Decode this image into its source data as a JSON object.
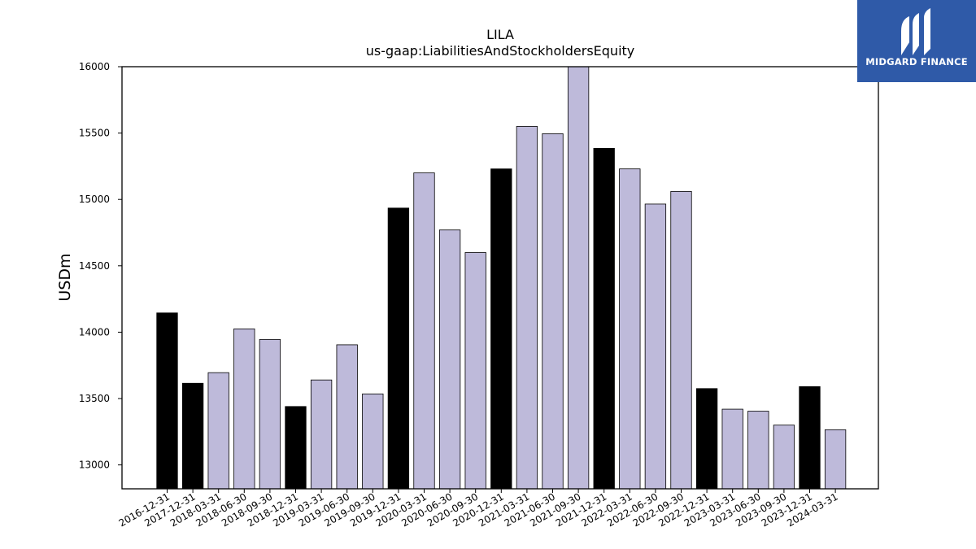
{
  "logo": {
    "text": "MIDGARD FINANCE",
    "background": "#2f5aa8"
  },
  "chart_data": {
    "type": "bar",
    "title": "LILA",
    "subtitle": "us-gaap:LiabilitiesAndStockholdersEquity",
    "xlabel": "",
    "ylabel": "USDm",
    "ylim": [
      12820,
      16000
    ],
    "yticks": [
      13000,
      13500,
      14000,
      14500,
      15000,
      15500,
      16000
    ],
    "grid": false,
    "colors": {
      "annual": "#000000",
      "quarterly": "#bebada"
    },
    "categories": [
      "2016-12-31",
      "2017-12-31",
      "2018-03-31",
      "2018-06-30",
      "2018-09-30",
      "2018-12-31",
      "2019-03-31",
      "2019-06-30",
      "2019-09-30",
      "2019-12-31",
      "2020-03-31",
      "2020-06-30",
      "2020-09-30",
      "2020-12-31",
      "2021-03-31",
      "2021-06-30",
      "2021-09-30",
      "2021-12-31",
      "2022-03-31",
      "2022-06-30",
      "2022-09-30",
      "2022-12-31",
      "2023-03-31",
      "2023-06-30",
      "2023-09-30",
      "2023-12-31",
      "2024-03-31"
    ],
    "values": [
      14145,
      13615,
      13695,
      14025,
      13945,
      13440,
      13640,
      13905,
      13535,
      14935,
      15200,
      14770,
      14600,
      15230,
      15550,
      15495,
      16000,
      15385,
      15230,
      14965,
      15060,
      13575,
      13420,
      13405,
      13300,
      13590,
      13265
    ],
    "period_type": [
      "annual",
      "annual",
      "quarterly",
      "quarterly",
      "quarterly",
      "annual",
      "quarterly",
      "quarterly",
      "quarterly",
      "annual",
      "quarterly",
      "quarterly",
      "quarterly",
      "annual",
      "quarterly",
      "quarterly",
      "quarterly",
      "annual",
      "quarterly",
      "quarterly",
      "quarterly",
      "annual",
      "quarterly",
      "quarterly",
      "quarterly",
      "annual",
      "quarterly"
    ]
  }
}
